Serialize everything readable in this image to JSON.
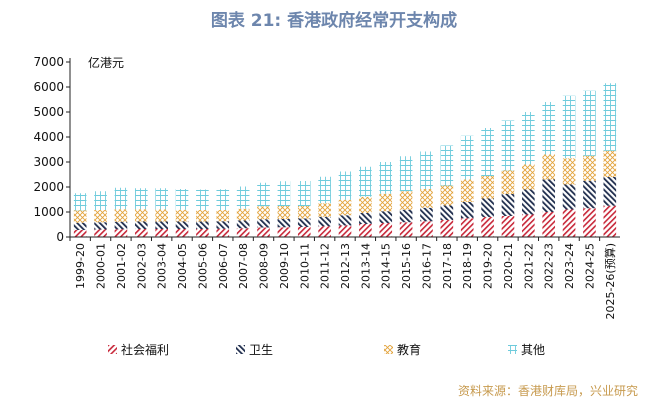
{
  "title": "图表 21: 香港政府经常开支构成",
  "source": "资料来源：香港财库局，兴业研究",
  "colors": {
    "title": "#6d86ad",
    "source": "#c79a4e",
    "welfare": "#c8283a",
    "health": "#1f2d4d",
    "education": "#e3a33b",
    "other": "#6ecbdc"
  },
  "chart_data": {
    "type": "bar",
    "stacked": true,
    "unit_label": "亿港元",
    "ylim": [
      0,
      7000
    ],
    "yticks": [
      0,
      1000,
      2000,
      3000,
      4000,
      5000,
      6000,
      7000
    ],
    "legend_position": "bottom",
    "categories": [
      "1999-20",
      "2000-01",
      "2001-02",
      "2002-03",
      "2003-04",
      "2004-05",
      "2005-06",
      "2006-07",
      "2007-08",
      "2008-09",
      "2009-10",
      "2010-11",
      "2011-12",
      "2012-13",
      "2013-14",
      "2014-15",
      "2015-16",
      "2016-17",
      "2017-18",
      "2018-19",
      "2019-20",
      "2020-21",
      "2021-22",
      "2022-23",
      "2023-24",
      "2024-25",
      "2025-26(预算)"
    ],
    "series": [
      {
        "name": "社会福利",
        "pattern": "diagonal-red",
        "values": [
          280,
          300,
          310,
          320,
          320,
          320,
          320,
          330,
          350,
          380,
          390,
          400,
          430,
          460,
          520,
          560,
          590,
          630,
          680,
          750,
          800,
          840,
          900,
          1000,
          1100,
          1150,
          1250
        ]
      },
      {
        "name": "卫生",
        "pattern": "diagonal-navy",
        "values": [
          290,
          290,
          300,
          300,
          300,
          300,
          300,
          300,
          310,
          330,
          330,
          340,
          380,
          410,
          440,
          470,
          500,
          540,
          580,
          650,
          740,
          880,
          1000,
          1300,
          1000,
          1100,
          1150
        ]
      },
      {
        "name": "教育",
        "pattern": "crosshatch-orange",
        "values": [
          500,
          490,
          500,
          490,
          480,
          470,
          460,
          450,
          470,
          520,
          520,
          500,
          540,
          620,
          650,
          700,
          740,
          750,
          800,
          900,
          900,
          950,
          1000,
          1000,
          1050,
          1000,
          1050
        ]
      },
      {
        "name": "其他",
        "pattern": "grid-cyan",
        "values": [
          680,
          750,
          860,
          840,
          850,
          830,
          820,
          830,
          890,
          940,
          990,
          1000,
          1060,
          1130,
          1200,
          1270,
          1400,
          1500,
          1600,
          1750,
          1920,
          1990,
          2100,
          2100,
          2500,
          2600,
          2700
        ]
      }
    ]
  }
}
